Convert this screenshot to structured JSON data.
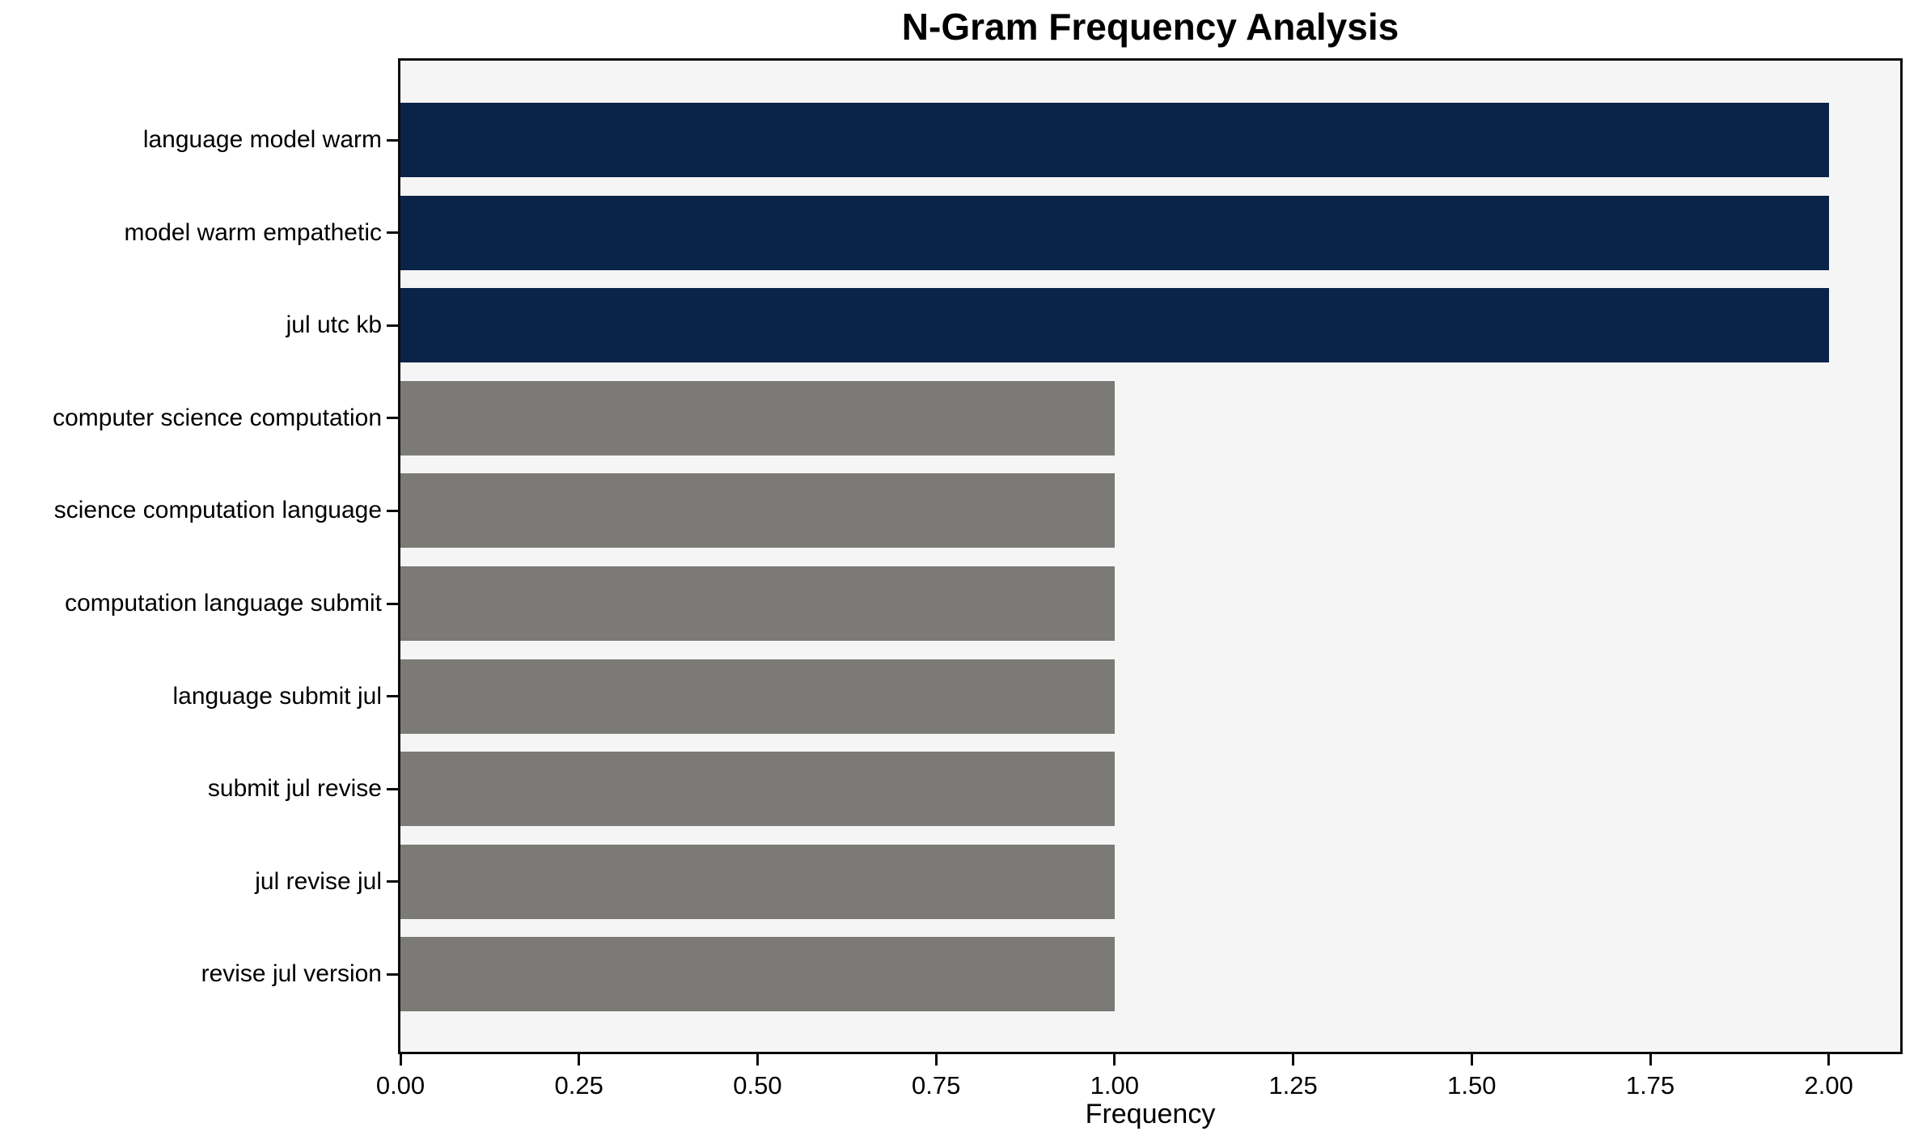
{
  "chart_data": {
    "type": "bar",
    "orientation": "horizontal",
    "title": "N-Gram Frequency Analysis",
    "xlabel": "Frequency",
    "ylabel": "",
    "categories": [
      "language model warm",
      "model warm empathetic",
      "jul utc kb",
      "computer science computation",
      "science computation language",
      "computation language submit",
      "language submit jul",
      "submit jul revise",
      "jul revise jul",
      "revise jul version"
    ],
    "values": [
      2,
      2,
      2,
      1,
      1,
      1,
      1,
      1,
      1,
      1
    ],
    "bar_colors": [
      "#0a2349",
      "#0a2349",
      "#0a2349",
      "#7b7a76",
      "#7b7a76",
      "#7b7a76",
      "#7b7a76",
      "#7b7a76",
      "#7b7a76",
      "#7b7a76"
    ],
    "xlim": [
      0,
      2.1
    ],
    "x_tick_labels": [
      "0.00",
      "0.25",
      "0.50",
      "0.75",
      "1.00",
      "1.25",
      "1.50",
      "1.75",
      "2.00"
    ],
    "x_tick_values": [
      0,
      0.25,
      0.5,
      0.75,
      1.0,
      1.25,
      1.5,
      1.75,
      2.0
    ],
    "grid": false,
    "legend_position": "none",
    "colors": {
      "plot_background": "#f5f5f5",
      "figure_background": "#ffffff",
      "spine": "#0b0b0b",
      "text": "#000000",
      "high_bar": "#0a2349",
      "low_bar": "#7b7a76"
    }
  }
}
